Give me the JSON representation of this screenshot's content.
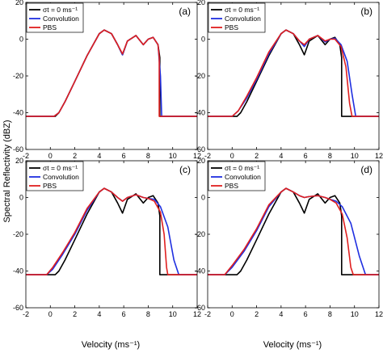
{
  "figure": {
    "ylabel": "Spectral Reflectivity (dBZ)",
    "xlabel": "Velocity (ms⁻¹)"
  },
  "legend": {
    "entries": [
      "σt = 0 ms⁻¹",
      "Convolution",
      "PBS"
    ]
  },
  "axes_common": {
    "xlim": [
      -2,
      12
    ],
    "ylim": [
      -60,
      20
    ],
    "xticks": [
      -2,
      0,
      2,
      4,
      6,
      8,
      10,
      12
    ],
    "yticks": [
      20,
      0,
      -20,
      -40,
      -60
    ]
  },
  "colors": {
    "reference": "#000000",
    "convolution": "#1f2fe0",
    "pbs": "#e01f1f"
  },
  "chart_data": [
    {
      "type": "line",
      "panel_label": "(a)",
      "legend": "top-left",
      "xlim": [
        -2,
        12
      ],
      "ylim": [
        -60,
        20
      ],
      "series": [
        {
          "name": "σt = 0 ms⁻¹",
          "color": "#000000",
          "x": [
            -2,
            0.4,
            0.7,
            1.2,
            2,
            3,
            4,
            4.4,
            5,
            5.5,
            5.9,
            6.3,
            7,
            7.6,
            8.0,
            8.4,
            8.8,
            8.95,
            8.95,
            12
          ],
          "y": [
            -42,
            -42,
            -40,
            -34,
            -23,
            -9,
            3,
            5,
            3,
            -3,
            -8.5,
            -1,
            2,
            -3,
            0,
            1,
            -3,
            -10,
            -42,
            -42
          ]
        },
        {
          "name": "Convolution",
          "color": "#1f2fe0",
          "x": [
            -2,
            0.3,
            0.7,
            1.2,
            2,
            3,
            4,
            4.4,
            5,
            5.5,
            5.9,
            6.3,
            7,
            7.6,
            8.0,
            8.4,
            8.8,
            9.0,
            9.1,
            12
          ],
          "y": [
            -42,
            -42,
            -40,
            -34,
            -23,
            -9,
            3,
            5,
            3,
            -3,
            -8.5,
            -1,
            2,
            -3,
            0,
            1,
            -3,
            -20,
            -42,
            -42
          ]
        },
        {
          "name": "PBS",
          "color": "#e01f1f",
          "x": [
            -2,
            0.3,
            0.7,
            1.2,
            2,
            3,
            4,
            4.4,
            5,
            5.5,
            5.9,
            6.3,
            7,
            7.6,
            8.0,
            8.4,
            8.8,
            8.9,
            8.9,
            12
          ],
          "y": [
            -42,
            -42,
            -40,
            -34,
            -23,
            -9,
            3,
            5,
            3,
            -3,
            -8,
            -1,
            2,
            -3,
            0,
            1,
            -3,
            -10,
            -42,
            -42
          ]
        }
      ]
    },
    {
      "type": "line",
      "panel_label": "(b)",
      "legend": "top-left",
      "xlim": [
        -2,
        12
      ],
      "ylim": [
        -60,
        20
      ],
      "series": [
        {
          "name": "σt = 0 ms⁻¹",
          "color": "#000000",
          "x": [
            -2,
            0.4,
            0.7,
            1.2,
            2,
            3,
            4,
            4.4,
            5,
            5.5,
            5.9,
            6.3,
            7,
            7.6,
            8.0,
            8.4,
            8.8,
            8.95,
            8.95,
            12
          ],
          "y": [
            -42,
            -42,
            -40,
            -34,
            -23,
            -9,
            3,
            5,
            3,
            -3,
            -8.5,
            -1,
            2,
            -3,
            0,
            1,
            -3,
            -10,
            -42,
            -42
          ]
        },
        {
          "name": "Convolution",
          "color": "#1f2fe0",
          "x": [
            -2,
            0.0,
            0.5,
            1.2,
            2,
            3,
            4,
            4.4,
            5,
            5.5,
            5.9,
            6.3,
            7,
            7.6,
            8.0,
            8.4,
            8.9,
            9.4,
            9.8,
            10.1,
            12
          ],
          "y": [
            -42,
            -42,
            -39,
            -32,
            -22,
            -8,
            3,
            5,
            3,
            -1,
            -4,
            0,
            2,
            -1.5,
            0,
            0.5,
            -3,
            -12,
            -30,
            -42,
            -42
          ]
        },
        {
          "name": "PBS",
          "color": "#e01f1f",
          "x": [
            -2,
            0.0,
            0.5,
            1.2,
            2,
            3,
            4,
            4.4,
            5,
            5.5,
            5.9,
            6.3,
            7,
            7.6,
            8.0,
            8.4,
            8.9,
            9.3,
            9.6,
            9.8,
            12
          ],
          "y": [
            -42,
            -42,
            -39,
            -31,
            -21,
            -7,
            3,
            5,
            3,
            -1,
            -3,
            0,
            2,
            -1,
            0,
            0,
            -4,
            -15,
            -35,
            -42,
            -42
          ]
        }
      ]
    },
    {
      "type": "line",
      "panel_label": "(c)",
      "legend": "top-left",
      "xlim": [
        -2,
        12
      ],
      "ylim": [
        -60,
        20
      ],
      "series": [
        {
          "name": "σt = 0 ms⁻¹",
          "color": "#000000",
          "x": [
            -2,
            0.4,
            0.7,
            1.2,
            2,
            3,
            4,
            4.4,
            5,
            5.5,
            5.9,
            6.3,
            7,
            7.6,
            8.0,
            8.4,
            8.8,
            8.95,
            8.95,
            12
          ],
          "y": [
            -42,
            -42,
            -40,
            -34,
            -23,
            -9,
            3,
            5,
            3,
            -3,
            -8.5,
            -1,
            2,
            -3,
            0,
            1,
            -3,
            -10,
            -42,
            -42
          ]
        },
        {
          "name": "Convolution",
          "color": "#1f2fe0",
          "x": [
            -2,
            -0.3,
            0.2,
            1.0,
            2,
            3,
            4,
            4.4,
            5,
            5.5,
            5.9,
            6.3,
            7,
            7.6,
            8.0,
            8.5,
            9.0,
            9.6,
            10.1,
            10.5,
            12
          ],
          "y": [
            -42,
            -42,
            -39,
            -31,
            -20,
            -7,
            3,
            5,
            3,
            0,
            -2,
            0,
            1.5,
            0,
            -0.5,
            -1,
            -5,
            -16,
            -34,
            -42,
            -42
          ]
        },
        {
          "name": "PBS",
          "color": "#e01f1f",
          "x": [
            -2,
            -0.3,
            0.2,
            1.0,
            2,
            3,
            4,
            4.4,
            5,
            5.5,
            5.9,
            6.3,
            7,
            7.6,
            8.0,
            8.5,
            9.0,
            9.3,
            9.5,
            9.6,
            12
          ],
          "y": [
            -42,
            -42,
            -38,
            -30,
            -19,
            -6,
            3,
            5,
            3,
            0,
            -2,
            0,
            1.5,
            0,
            -0.5,
            -2,
            -8,
            -20,
            -38,
            -42,
            -42
          ]
        }
      ]
    },
    {
      "type": "line",
      "panel_label": "(d)",
      "legend": "top-left",
      "xlim": [
        -2,
        12
      ],
      "ylim": [
        -60,
        20
      ],
      "series": [
        {
          "name": "σt = 0 ms⁻¹",
          "color": "#000000",
          "x": [
            -2,
            0.4,
            0.7,
            1.2,
            2,
            3,
            4,
            4.4,
            5,
            5.5,
            5.9,
            6.3,
            7,
            7.6,
            8.0,
            8.4,
            8.8,
            8.95,
            8.95,
            12
          ],
          "y": [
            -42,
            -42,
            -40,
            -34,
            -23,
            -9,
            3,
            5,
            3,
            -3,
            -8.5,
            -1,
            2,
            -3,
            0,
            1,
            -3,
            -10,
            -42,
            -42
          ]
        },
        {
          "name": "Convolution",
          "color": "#1f2fe0",
          "x": [
            -2,
            -0.6,
            0.0,
            1.0,
            2,
            3,
            4,
            4.4,
            5,
            5.5,
            5.9,
            6.3,
            7,
            7.6,
            8.0,
            8.5,
            9.0,
            9.7,
            10.4,
            10.9,
            12
          ],
          "y": [
            -42,
            -42,
            -38,
            -29,
            -18,
            -5,
            3,
            5,
            3,
            1,
            0,
            0.5,
            1,
            0,
            -1,
            -2,
            -5,
            -14,
            -32,
            -42,
            -42
          ]
        },
        {
          "name": "PBS",
          "color": "#e01f1f",
          "x": [
            -2,
            -0.6,
            0.0,
            1.0,
            2,
            3,
            4,
            4.4,
            5,
            5.5,
            5.9,
            6.3,
            7,
            7.6,
            8.0,
            8.5,
            9.0,
            9.4,
            9.7,
            9.9,
            12
          ],
          "y": [
            -42,
            -42,
            -37,
            -28,
            -17,
            -4,
            3,
            5,
            3,
            1,
            0,
            0.5,
            1,
            0,
            -1,
            -3,
            -9,
            -22,
            -38,
            -42,
            -42
          ]
        }
      ]
    }
  ]
}
